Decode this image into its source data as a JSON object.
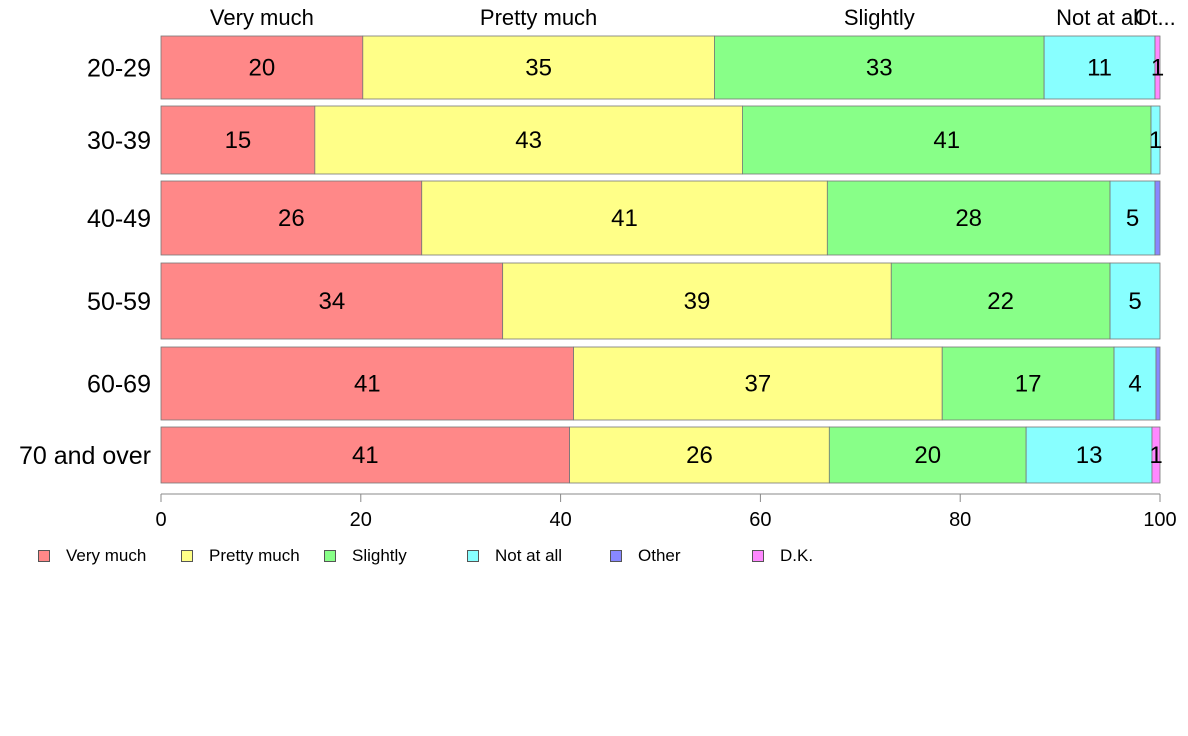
{
  "chart_data": {
    "type": "bar",
    "orientation": "horizontal",
    "stacked": true,
    "categories": [
      "20-29",
      "30-39",
      "40-49",
      "50-59",
      "60-69",
      "70 and over"
    ],
    "series": [
      {
        "name": "Very much",
        "color": "#ff8888",
        "values": [
          20.2,
          15.4,
          26.1,
          34.2,
          41.3,
          40.9
        ]
      },
      {
        "name": "Pretty much",
        "color": "#ffff88",
        "values": [
          35.2,
          42.8,
          40.6,
          38.9,
          36.9,
          26.0
        ]
      },
      {
        "name": "Slightly",
        "color": "#88ff88",
        "values": [
          33.0,
          40.9,
          28.3,
          21.9,
          17.2,
          19.7
        ]
      },
      {
        "name": "Not at all",
        "color": "#88ffff",
        "values": [
          11.1,
          0.9,
          4.5,
          5.0,
          4.2,
          12.6
        ]
      },
      {
        "name": "Other",
        "color": "#8888ff",
        "values": [
          0.0,
          0.0,
          0.5,
          0.0,
          0.4,
          0.0
        ]
      },
      {
        "name": "D.K.",
        "color": "#ff88ff",
        "values": [
          0.5,
          0.0,
          0.0,
          0.0,
          0.0,
          0.8
        ]
      }
    ],
    "segment_labels": [
      [
        "20",
        "35",
        "33",
        "11",
        "",
        "1"
      ],
      [
        "15",
        "43",
        "41",
        "1",
        "",
        ""
      ],
      [
        "26",
        "41",
        "28",
        "5",
        "",
        ""
      ],
      [
        "34",
        "39",
        "22",
        "5",
        "",
        ""
      ],
      [
        "41",
        "37",
        "17",
        "4",
        "",
        ""
      ],
      [
        "41",
        "26",
        "20",
        "13",
        "",
        "1"
      ]
    ],
    "top_labels": [
      "Very much",
      "Pretty much",
      "Slightly",
      "Not at all",
      "Ot..."
    ],
    "xlim": [
      0,
      100
    ],
    "xticks": [
      0,
      20,
      40,
      60,
      80,
      100
    ],
    "grid": false,
    "legend_position": "bottom-left"
  }
}
